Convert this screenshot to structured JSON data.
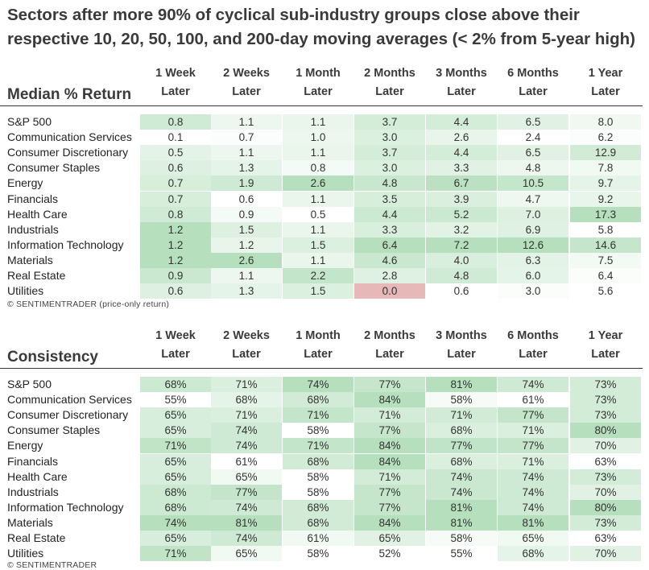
{
  "title": "Sectors after more 90% of cyclical sub-industry groups close above their respective 10, 20, 50, 100, and 200-day moving averages (< 2% from 5-year high)",
  "columns": [
    {
      "line1": "1 Week",
      "line2": "Later"
    },
    {
      "line1": "2 Weeks",
      "line2": "Later"
    },
    {
      "line1": "1 Month",
      "line2": "Later"
    },
    {
      "line1": "2 Months",
      "line2": "Later"
    },
    {
      "line1": "3 Months",
      "line2": "Later"
    },
    {
      "line1": "6 Months",
      "line2": "Later"
    },
    {
      "line1": "1 Year",
      "line2": "Later"
    }
  ],
  "median": {
    "label": "Median % Return",
    "footer": "© SENTIMENTRADER  (price-only return)",
    "rows": [
      {
        "name": "S&P 500",
        "values": [
          "0.8",
          "1.1",
          "1.1",
          "3.7",
          "4.4",
          "6.5",
          "8.0"
        ]
      },
      {
        "name": "Communication Services",
        "values": [
          "0.1",
          "0.7",
          "1.0",
          "3.0",
          "2.6",
          "2.4",
          "6.2"
        ]
      },
      {
        "name": "Consumer Discretionary",
        "values": [
          "0.5",
          "1.1",
          "1.1",
          "3.7",
          "4.4",
          "6.5",
          "12.9"
        ]
      },
      {
        "name": "Consumer Staples",
        "values": [
          "0.6",
          "1.3",
          "0.8",
          "3.0",
          "3.3",
          "4.8",
          "7.8"
        ]
      },
      {
        "name": "Energy",
        "values": [
          "0.7",
          "1.9",
          "2.6",
          "4.8",
          "6.7",
          "10.5",
          "9.7"
        ]
      },
      {
        "name": "Financials",
        "values": [
          "0.7",
          "0.6",
          "1.1",
          "3.5",
          "3.9",
          "4.7",
          "9.2"
        ]
      },
      {
        "name": "Health Care",
        "values": [
          "0.8",
          "0.9",
          "0.5",
          "4.4",
          "5.2",
          "7.0",
          "17.3"
        ]
      },
      {
        "name": "Industrials",
        "values": [
          "1.2",
          "1.5",
          "1.1",
          "3.3",
          "3.2",
          "6.9",
          "5.8"
        ]
      },
      {
        "name": "Information Technology",
        "values": [
          "1.2",
          "1.2",
          "1.5",
          "6.4",
          "7.2",
          "12.6",
          "14.6"
        ]
      },
      {
        "name": "Materials",
        "values": [
          "1.2",
          "2.6",
          "1.1",
          "4.6",
          "4.0",
          "6.3",
          "7.5"
        ]
      },
      {
        "name": "Real Estate",
        "values": [
          "0.9",
          "1.1",
          "2.2",
          "2.8",
          "4.8",
          "6.0",
          "6.4"
        ]
      },
      {
        "name": "Utilities",
        "values": [
          "0.6",
          "1.3",
          "1.5",
          "0.0",
          "0.6",
          "3.0",
          "5.6"
        ]
      }
    ]
  },
  "consistency": {
    "label": "Consistency",
    "footer": "© SENTIMENTRADER",
    "rows": [
      {
        "name": "S&P 500",
        "values": [
          "68%",
          "71%",
          "74%",
          "77%",
          "81%",
          "74%",
          "73%"
        ]
      },
      {
        "name": "Communication Services",
        "values": [
          "55%",
          "68%",
          "68%",
          "84%",
          "58%",
          "61%",
          "73%"
        ]
      },
      {
        "name": "Consumer Discretionary",
        "values": [
          "65%",
          "71%",
          "71%",
          "71%",
          "71%",
          "77%",
          "73%"
        ]
      },
      {
        "name": "Consumer Staples",
        "values": [
          "65%",
          "74%",
          "58%",
          "77%",
          "68%",
          "71%",
          "80%"
        ]
      },
      {
        "name": "Energy",
        "values": [
          "71%",
          "74%",
          "71%",
          "84%",
          "77%",
          "77%",
          "70%"
        ]
      },
      {
        "name": "Financials",
        "values": [
          "65%",
          "61%",
          "68%",
          "84%",
          "68%",
          "71%",
          "63%"
        ]
      },
      {
        "name": "Health Care",
        "values": [
          "65%",
          "65%",
          "58%",
          "71%",
          "74%",
          "74%",
          "73%"
        ]
      },
      {
        "name": "Industrials",
        "values": [
          "68%",
          "77%",
          "58%",
          "77%",
          "74%",
          "74%",
          "70%"
        ]
      },
      {
        "name": "Information Technology",
        "values": [
          "68%",
          "74%",
          "68%",
          "77%",
          "81%",
          "74%",
          "80%"
        ]
      },
      {
        "name": "Materials",
        "values": [
          "74%",
          "81%",
          "68%",
          "84%",
          "81%",
          "81%",
          "73%"
        ]
      },
      {
        "name": "Real Estate",
        "values": [
          "65%",
          "74%",
          "61%",
          "65%",
          "58%",
          "65%",
          "63%"
        ]
      },
      {
        "name": "Utilities",
        "values": [
          "71%",
          "65%",
          "58%",
          "52%",
          "55%",
          "68%",
          "70%"
        ]
      }
    ]
  },
  "colors": {
    "positive_scale_light": "#ffffff",
    "positive_scale_dark": "#b5dfbd",
    "negative_zero": "#e6b8b7",
    "text": "#333333"
  }
}
